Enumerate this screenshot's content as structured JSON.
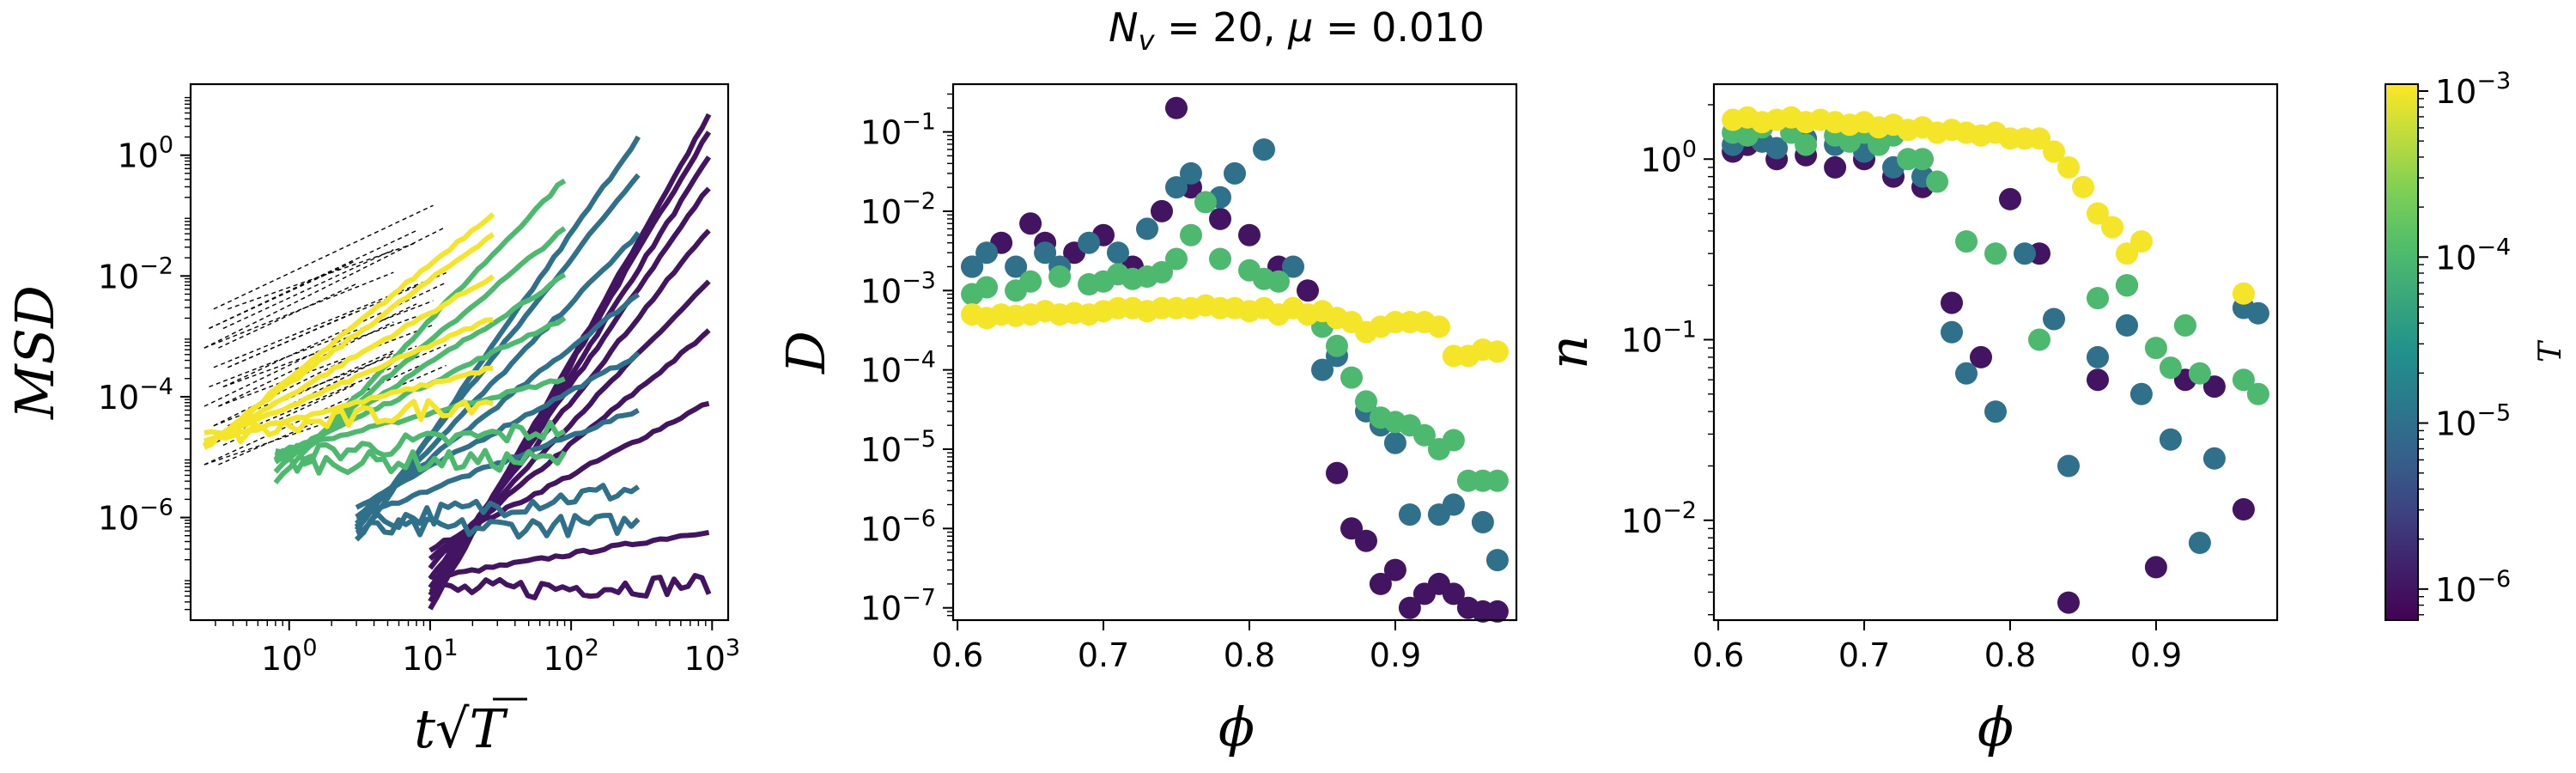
{
  "title": {
    "prefix_var": "N",
    "sub": "v",
    "rest": " = 20, ",
    "mu": "μ",
    "mu_rest": " = 0.010"
  },
  "colorbar": {
    "label": "T",
    "ticks": [
      {
        "exp": "-3",
        "value": 0.001
      },
      {
        "exp": "-4",
        "value": 0.0001
      },
      {
        "exp": "-5",
        "value": 1e-05
      },
      {
        "exp": "-6",
        "value": 1e-06
      }
    ],
    "range": [
      6.5e-07,
      0.0011
    ],
    "colormap": "viridis"
  },
  "chart_data": [
    {
      "type": "line",
      "name": "msd-panel",
      "xlabel": "t√T",
      "ylabel": "MSD",
      "xscale": "log",
      "yscale": "log",
      "xlim": [
        0.2,
        1300
      ],
      "ylim": [
        2e-08,
        15
      ],
      "xticks": [
        {
          "base": "10",
          "exp": "0",
          "value": 1
        },
        {
          "base": "10",
          "exp": "1",
          "value": 10
        },
        {
          "base": "10",
          "exp": "2",
          "value": 100
        },
        {
          "base": "10",
          "exp": "3",
          "value": 1000
        }
      ],
      "yticks": [
        {
          "base": "10",
          "exp": "0",
          "value": 1
        },
        {
          "base": "10",
          "exp": "-2",
          "value": 0.01
        },
        {
          "base": "10",
          "exp": "-4",
          "value": 0.0001
        },
        {
          "base": "10",
          "exp": "-6",
          "value": 1e-06
        }
      ],
      "series": [
        {
          "T": 1e-06,
          "x0": 10,
          "x1": 950,
          "y0": 3e-08,
          "y1": 4.5
        },
        {
          "T": 1e-06,
          "x0": 10,
          "x1": 950,
          "y0": 4e-08,
          "y1": 2.5
        },
        {
          "T": 1e-06,
          "x0": 10,
          "x1": 950,
          "y0": 5e-08,
          "y1": 0.9
        },
        {
          "T": 1e-06,
          "x0": 10,
          "x1": 950,
          "y0": 7e-08,
          "y1": 0.3
        },
        {
          "T": 1e-06,
          "x0": 10,
          "x1": 950,
          "y0": 1e-07,
          "y1": 0.06
        },
        {
          "T": 1e-06,
          "x0": 10,
          "x1": 950,
          "y0": 1.5e-07,
          "y1": 0.008
        },
        {
          "T": 1e-06,
          "x0": 10,
          "x1": 950,
          "y0": 2e-07,
          "y1": 0.0012
        },
        {
          "T": 1e-06,
          "x0": 10,
          "x1": 950,
          "y0": 3e-07,
          "y1": 8e-05
        },
        {
          "T": 1e-06,
          "x0": 10,
          "x1": 950,
          "y0": 1e-07,
          "y1": 6e-07
        },
        {
          "T": 1e-06,
          "x0": 10,
          "x1": 950,
          "y0": 6e-08,
          "y1": 8e-08
        },
        {
          "T": 1e-05,
          "x0": 3,
          "x1": 300,
          "y0": 4e-07,
          "y1": 2.0
        },
        {
          "T": 1e-05,
          "x0": 3,
          "x1": 300,
          "y0": 6e-07,
          "y1": 0.5
        },
        {
          "T": 1e-05,
          "x0": 3,
          "x1": 300,
          "y0": 8e-07,
          "y1": 0.05
        },
        {
          "T": 1e-05,
          "x0": 3,
          "x1": 300,
          "y0": 1e-06,
          "y1": 0.005
        },
        {
          "T": 1e-05,
          "x0": 3,
          "x1": 300,
          "y0": 1.5e-06,
          "y1": 0.0005
        },
        {
          "T": 1e-05,
          "x0": 3,
          "x1": 300,
          "y0": 1e-06,
          "y1": 6e-05
        },
        {
          "T": 1e-05,
          "x0": 3,
          "x1": 300,
          "y0": 8e-07,
          "y1": 3e-06
        },
        {
          "T": 1e-05,
          "x0": 3,
          "x1": 300,
          "y0": 6e-07,
          "y1": 8e-07
        },
        {
          "T": 0.0001,
          "x0": 0.8,
          "x1": 90,
          "y0": 4e-06,
          "y1": 0.4
        },
        {
          "T": 0.0001,
          "x0": 0.8,
          "x1": 90,
          "y0": 6e-06,
          "y1": 0.06
        },
        {
          "T": 0.0001,
          "x0": 0.8,
          "x1": 90,
          "y0": 8e-06,
          "y1": 0.01
        },
        {
          "T": 0.0001,
          "x0": 0.8,
          "x1": 90,
          "y0": 1e-05,
          "y1": 0.002
        },
        {
          "T": 0.0001,
          "x0": 0.8,
          "x1": 90,
          "y0": 1.2e-05,
          "y1": 0.0002
        },
        {
          "T": 0.0001,
          "x0": 0.8,
          "x1": 90,
          "y0": 1e-05,
          "y1": 3e-05
        },
        {
          "T": 0.0001,
          "x0": 0.8,
          "x1": 90,
          "y0": 8e-06,
          "y1": 9e-06
        },
        {
          "T": 0.001,
          "x0": 0.25,
          "x1": 28,
          "y0": 1.4e-05,
          "y1": 0.11
        },
        {
          "T": 0.001,
          "x0": 0.25,
          "x1": 28,
          "y0": 1.5e-05,
          "y1": 0.05
        },
        {
          "T": 0.001,
          "x0": 0.25,
          "x1": 28,
          "y0": 1.6e-05,
          "y1": 0.01
        },
        {
          "T": 0.001,
          "x0": 0.25,
          "x1": 28,
          "y0": 1.7e-05,
          "y1": 0.002
        },
        {
          "T": 0.001,
          "x0": 0.25,
          "x1": 28,
          "y0": 1.8e-05,
          "y1": 0.0003
        },
        {
          "T": 0.001,
          "x0": 0.25,
          "x1": 28,
          "y0": 2e-05,
          "y1": 9e-05
        }
      ]
    },
    {
      "type": "scatter",
      "name": "diffusion-panel",
      "xlabel": "ϕ",
      "ylabel": "D",
      "xscale": "linear",
      "yscale": "log",
      "xlim": [
        0.597,
        0.983
      ],
      "ylim": [
        7e-08,
        0.4
      ],
      "xticks": [
        0.6,
        0.7,
        0.8,
        0.9
      ],
      "yticks": [
        {
          "base": "10",
          "exp": "-1",
          "value": 0.1
        },
        {
          "base": "10",
          "exp": "-2",
          "value": 0.01
        },
        {
          "base": "10",
          "exp": "-3",
          "value": 0.001
        },
        {
          "base": "10",
          "exp": "-4",
          "value": 0.0001
        },
        {
          "base": "10",
          "exp": "-5",
          "value": 1e-05
        },
        {
          "base": "10",
          "exp": "-6",
          "value": 1e-06
        },
        {
          "base": "10",
          "exp": "-7",
          "value": 1e-07
        }
      ],
      "series": [
        {
          "T": 1e-06,
          "phi": [
            0.61,
            0.63,
            0.65,
            0.66,
            0.68,
            0.7,
            0.72,
            0.74,
            0.75,
            0.76,
            0.78,
            0.8,
            0.82,
            0.84,
            0.86,
            0.87,
            0.88,
            0.89,
            0.9,
            0.91,
            0.92,
            0.93,
            0.94,
            0.95,
            0.96,
            0.97
          ],
          "D": [
            0.002,
            0.004,
            0.007,
            0.004,
            0.003,
            0.005,
            0.002,
            0.01,
            0.2,
            0.02,
            0.008,
            0.005,
            0.002,
            0.001,
            5e-06,
            1e-06,
            7e-07,
            2e-07,
            3e-07,
            1e-07,
            1.5e-07,
            2e-07,
            1.5e-07,
            1e-07,
            9e-08,
            9e-08
          ]
        },
        {
          "T": 1e-05,
          "phi": [
            0.61,
            0.62,
            0.64,
            0.66,
            0.67,
            0.69,
            0.71,
            0.73,
            0.75,
            0.76,
            0.78,
            0.79,
            0.81,
            0.83,
            0.85,
            0.86,
            0.88,
            0.89,
            0.9,
            0.91,
            0.93,
            0.94,
            0.96,
            0.97
          ],
          "D": [
            0.002,
            0.003,
            0.002,
            0.003,
            0.002,
            0.004,
            0.003,
            0.006,
            0.02,
            0.03,
            0.015,
            0.03,
            0.06,
            0.002,
            0.0001,
            0.00015,
            3e-05,
            2e-05,
            1.2e-05,
            1.5e-06,
            1.5e-06,
            2e-06,
            1.2e-06,
            4e-07
          ]
        },
        {
          "T": 0.0001,
          "phi": [
            0.61,
            0.62,
            0.64,
            0.65,
            0.67,
            0.69,
            0.7,
            0.71,
            0.72,
            0.73,
            0.74,
            0.75,
            0.76,
            0.77,
            0.78,
            0.8,
            0.81,
            0.82,
            0.85,
            0.86,
            0.87,
            0.88,
            0.89,
            0.9,
            0.91,
            0.92,
            0.93,
            0.94,
            0.95,
            0.96,
            0.97
          ],
          "D": [
            0.0009,
            0.0011,
            0.001,
            0.0013,
            0.0015,
            0.0012,
            0.0013,
            0.0016,
            0.0014,
            0.0015,
            0.0017,
            0.0025,
            0.005,
            0.013,
            0.0025,
            0.0018,
            0.0014,
            0.0013,
            0.00035,
            0.0002,
            8e-05,
            4e-05,
            2.5e-05,
            2.2e-05,
            2e-05,
            1.5e-05,
            1e-05,
            1.3e-05,
            4e-06,
            4e-06,
            4e-06
          ]
        },
        {
          "T": 0.001,
          "phi": [
            0.61,
            0.62,
            0.63,
            0.64,
            0.65,
            0.66,
            0.67,
            0.68,
            0.69,
            0.7,
            0.71,
            0.72,
            0.73,
            0.74,
            0.75,
            0.76,
            0.77,
            0.78,
            0.79,
            0.8,
            0.81,
            0.82,
            0.83,
            0.84,
            0.85,
            0.86,
            0.87,
            0.88,
            0.89,
            0.9,
            0.91,
            0.92,
            0.93,
            0.94,
            0.95,
            0.96,
            0.97
          ],
          "D": [
            0.0005,
            0.00045,
            0.0005,
            0.00048,
            0.0005,
            0.00055,
            0.0005,
            0.00052,
            0.0005,
            0.00055,
            0.0006,
            0.0006,
            0.00055,
            0.0006,
            0.0006,
            0.0006,
            0.00065,
            0.0006,
            0.0006,
            0.00055,
            0.0006,
            0.0005,
            0.0006,
            0.0005,
            0.00055,
            0.00045,
            0.0004,
            0.0003,
            0.00035,
            0.0004,
            0.0004,
            0.0004,
            0.00035,
            0.00015,
            0.00015,
            0.00018,
            0.00017
          ]
        }
      ]
    },
    {
      "type": "scatter",
      "name": "exponent-panel",
      "xlabel": "ϕ",
      "ylabel": "n",
      "xscale": "linear",
      "yscale": "log",
      "xlim": [
        0.597,
        0.983
      ],
      "ylim": [
        0.0028,
        2.6
      ],
      "xticks": [
        0.6,
        0.7,
        0.8,
        0.9
      ],
      "yticks": [
        {
          "base": "10",
          "exp": "0",
          "value": 1
        },
        {
          "base": "10",
          "exp": "-1",
          "value": 0.1
        },
        {
          "base": "10",
          "exp": "-2",
          "value": 0.01
        }
      ],
      "series": [
        {
          "T": 1e-06,
          "phi": [
            0.61,
            0.62,
            0.64,
            0.66,
            0.68,
            0.7,
            0.72,
            0.74,
            0.76,
            0.78,
            0.8,
            0.82,
            0.84,
            0.86,
            0.88,
            0.9,
            0.92,
            0.94,
            0.96
          ],
          "n": [
            1.1,
            1.2,
            1.0,
            1.05,
            0.9,
            1.0,
            0.8,
            0.7,
            0.16,
            0.08,
            0.6,
            0.3,
            0.0035,
            0.06,
            0.2,
            0.0055,
            0.06,
            0.055,
            0.0115
          ]
        },
        {
          "T": 1e-05,
          "phi": [
            0.61,
            0.63,
            0.64,
            0.66,
            0.68,
            0.7,
            0.72,
            0.74,
            0.76,
            0.77,
            0.79,
            0.81,
            0.83,
            0.84,
            0.86,
            0.88,
            0.89,
            0.91,
            0.93,
            0.94,
            0.96,
            0.97
          ],
          "n": [
            1.2,
            1.25,
            1.15,
            1.3,
            1.2,
            1.1,
            0.9,
            0.8,
            0.11,
            0.065,
            0.04,
            0.3,
            0.13,
            0.02,
            0.08,
            0.12,
            0.05,
            0.028,
            0.0075,
            0.022,
            0.15,
            0.14
          ]
        },
        {
          "T": 0.0001,
          "phi": [
            0.61,
            0.62,
            0.63,
            0.65,
            0.66,
            0.68,
            0.69,
            0.7,
            0.71,
            0.72,
            0.73,
            0.74,
            0.75,
            0.77,
            0.79,
            0.82,
            0.86,
            0.88,
            0.9,
            0.91,
            0.92,
            0.93,
            0.96,
            0.97
          ],
          "n": [
            1.4,
            1.35,
            1.5,
            1.4,
            1.2,
            1.35,
            1.25,
            1.4,
            1.2,
            1.35,
            1.0,
            1.0,
            0.75,
            0.35,
            0.3,
            0.1,
            0.17,
            0.2,
            0.09,
            0.07,
            0.12,
            0.065,
            0.06,
            0.05
          ]
        },
        {
          "T": 0.001,
          "phi": [
            0.61,
            0.62,
            0.63,
            0.64,
            0.65,
            0.66,
            0.67,
            0.68,
            0.69,
            0.7,
            0.71,
            0.72,
            0.73,
            0.74,
            0.75,
            0.76,
            0.77,
            0.78,
            0.79,
            0.8,
            0.81,
            0.82,
            0.83,
            0.84,
            0.85,
            0.86,
            0.87,
            0.88,
            0.89,
            0.96
          ],
          "n": [
            1.65,
            1.7,
            1.6,
            1.65,
            1.7,
            1.6,
            1.65,
            1.6,
            1.55,
            1.6,
            1.5,
            1.55,
            1.45,
            1.5,
            1.4,
            1.45,
            1.4,
            1.35,
            1.4,
            1.3,
            1.3,
            1.3,
            1.1,
            0.9,
            0.7,
            0.5,
            0.42,
            0.3,
            0.35,
            0.18
          ]
        }
      ]
    }
  ]
}
